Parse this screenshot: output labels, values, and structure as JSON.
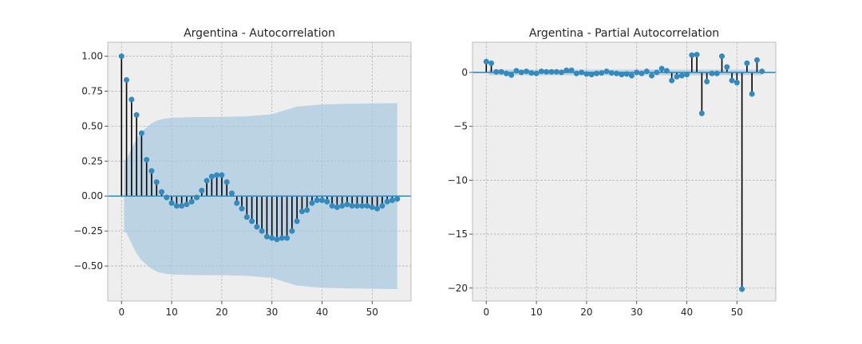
{
  "figure": {
    "background": "#ffffff"
  },
  "chart_data": [
    {
      "type": "stem",
      "title": "Argentina - Autocorrelation",
      "xlim": [
        -2.75,
        57.75
      ],
      "ylim": [
        -0.75,
        1.1
      ],
      "xticks": [
        0,
        10,
        20,
        30,
        40,
        50
      ],
      "yticks": [
        -0.5,
        -0.25,
        0.0,
        0.25,
        0.5,
        0.75,
        1.0
      ],
      "ytick_labels": [
        "−0.50",
        "−0.25",
        "0.00",
        "0.25",
        "0.50",
        "0.75",
        "1.00"
      ],
      "grid": true,
      "lags": [
        0,
        1,
        2,
        3,
        4,
        5,
        6,
        7,
        8,
        9,
        10,
        11,
        12,
        13,
        14,
        15,
        16,
        17,
        18,
        19,
        20,
        21,
        22,
        23,
        24,
        25,
        26,
        27,
        28,
        29,
        30,
        31,
        32,
        33,
        34,
        35,
        36,
        37,
        38,
        39,
        40,
        41,
        42,
        43,
        44,
        45,
        46,
        47,
        48,
        49,
        50,
        51,
        52,
        53,
        54,
        55
      ],
      "values": [
        1.0,
        0.83,
        0.69,
        0.58,
        0.45,
        0.26,
        0.18,
        0.1,
        0.03,
        -0.01,
        -0.05,
        -0.07,
        -0.07,
        -0.06,
        -0.04,
        -0.01,
        0.04,
        0.11,
        0.14,
        0.15,
        0.15,
        0.1,
        0.02,
        -0.05,
        -0.09,
        -0.15,
        -0.18,
        -0.22,
        -0.25,
        -0.29,
        -0.3,
        -0.31,
        -0.3,
        -0.3,
        -0.25,
        -0.18,
        -0.11,
        -0.1,
        -0.05,
        -0.03,
        -0.03,
        -0.04,
        -0.07,
        -0.08,
        -0.07,
        -0.06,
        -0.07,
        -0.07,
        -0.07,
        -0.07,
        -0.08,
        -0.09,
        -0.07,
        -0.04,
        -0.03,
        -0.02
      ],
      "confidence_band_lags": [
        1,
        2,
        3,
        4,
        5,
        6,
        7,
        8,
        9,
        10,
        12,
        15,
        20,
        25,
        30,
        35,
        40,
        45,
        50,
        55
      ],
      "confidence_band": [
        0.26,
        0.34,
        0.41,
        0.46,
        0.49,
        0.52,
        0.54,
        0.55,
        0.555,
        0.56,
        0.562,
        0.565,
        0.566,
        0.57,
        0.585,
        0.64,
        0.655,
        0.66,
        0.662,
        0.665
      ],
      "colors": {
        "stem": "#000000",
        "marker": "#348ABD",
        "zero_line": "#348ABD",
        "band": "#a6c8e0"
      }
    },
    {
      "type": "stem",
      "title": "Argentina - Partial Autocorrelation",
      "xlim": [
        -2.75,
        57.75
      ],
      "ylim": [
        -21.2,
        2.8
      ],
      "xticks": [
        0,
        10,
        20,
        30,
        40,
        50
      ],
      "yticks": [
        -20,
        -15,
        -10,
        -5,
        0
      ],
      "ytick_labels": [
        "−20",
        "−15",
        "−10",
        "−5",
        "0"
      ],
      "grid": true,
      "lags": [
        0,
        1,
        2,
        3,
        4,
        5,
        6,
        7,
        8,
        9,
        10,
        11,
        12,
        13,
        14,
        15,
        16,
        17,
        18,
        19,
        20,
        21,
        22,
        23,
        24,
        25,
        26,
        27,
        28,
        29,
        30,
        31,
        32,
        33,
        34,
        35,
        36,
        37,
        38,
        39,
        40,
        41,
        42,
        43,
        44,
        45,
        46,
        47,
        48,
        49,
        50,
        51,
        52,
        53,
        54,
        55
      ],
      "values": [
        1.0,
        0.85,
        0.05,
        0.05,
        -0.1,
        -0.25,
        0.15,
        0.0,
        0.1,
        -0.05,
        -0.1,
        0.1,
        0.05,
        0.05,
        0.05,
        0.0,
        0.2,
        0.2,
        -0.1,
        0.0,
        -0.15,
        -0.2,
        -0.1,
        -0.05,
        0.1,
        -0.05,
        -0.1,
        -0.2,
        -0.15,
        -0.3,
        0.0,
        -0.1,
        0.1,
        -0.3,
        0.0,
        0.35,
        0.15,
        -0.75,
        -0.4,
        -0.3,
        -0.2,
        1.6,
        1.65,
        -3.8,
        -0.85,
        -0.1,
        -0.1,
        1.5,
        0.5,
        -0.75,
        -0.95,
        -20.1,
        0.85,
        -2.0,
        1.15,
        0.1
      ],
      "confidence_band": 0.26,
      "colors": {
        "stem": "#000000",
        "marker": "#348ABD",
        "zero_line": "#348ABD",
        "band": "#a6c8e0"
      }
    }
  ]
}
